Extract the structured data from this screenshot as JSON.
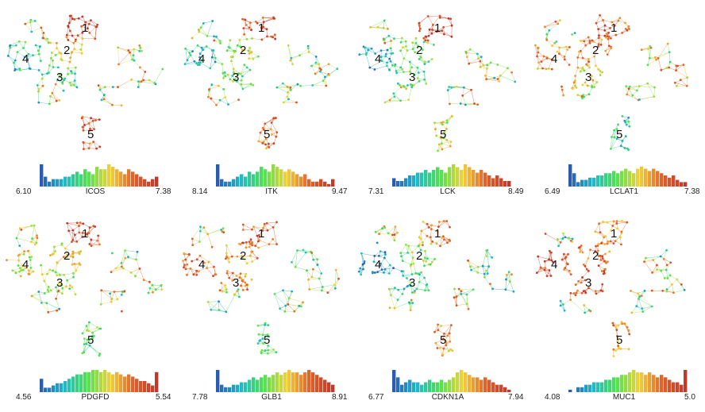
{
  "colors": {
    "low": "#2a5db0",
    "mid_low": "#1fb8c8",
    "mid": "#4fe24f",
    "mid_high": "#f2d13a",
    "high": "#e0602a",
    "max": "#c0392b"
  },
  "cluster_labels": [
    "1",
    "2",
    "3",
    "4",
    "5"
  ],
  "panels": [
    {
      "gene": "ICOS",
      "min": "6.10",
      "max": "7.38",
      "hist": [
        9,
        4,
        2,
        3,
        3,
        3,
        4,
        4,
        5,
        6,
        5,
        7,
        6,
        5,
        8,
        7,
        7,
        9,
        8,
        7,
        6,
        5,
        7,
        6,
        5,
        4,
        3,
        2,
        3,
        4
      ],
      "profile": [
        0.95,
        0.6,
        0.35,
        0.25,
        0.85
      ]
    },
    {
      "gene": "ITK",
      "min": "8.14",
      "max": "9.47",
      "hist": [
        9,
        3,
        2,
        2,
        3,
        4,
        5,
        4,
        6,
        5,
        6,
        8,
        7,
        6,
        9,
        8,
        7,
        6,
        7,
        6,
        5,
        4,
        5,
        3,
        2,
        2,
        3,
        2,
        1,
        3
      ],
      "profile": [
        0.9,
        0.5,
        0.4,
        0.2,
        0.8
      ]
    },
    {
      "gene": "LCK",
      "min": "7.31",
      "max": "8.49",
      "hist": [
        3,
        2,
        2,
        3,
        4,
        4,
        5,
        5,
        6,
        5,
        6,
        7,
        6,
        5,
        7,
        8,
        7,
        6,
        8,
        7,
        6,
        5,
        6,
        5,
        4,
        3,
        4,
        3,
        2,
        2
      ],
      "profile": [
        0.92,
        0.45,
        0.35,
        0.2,
        0.55
      ]
    },
    {
      "gene": "LCLAT1",
      "min": "6.49",
      "max": "7.38",
      "hist": [
        10,
        6,
        2,
        3,
        3,
        4,
        4,
        5,
        5,
        6,
        6,
        7,
        6,
        7,
        8,
        7,
        6,
        8,
        9,
        8,
        7,
        8,
        7,
        6,
        5,
        4,
        5,
        3,
        2,
        2
      ],
      "profile": [
        0.85,
        0.75,
        0.6,
        0.7,
        0.25
      ]
    },
    {
      "gene": "PDGFD",
      "min": "4.56",
      "max": "5.54",
      "hist": [
        6,
        2,
        2,
        3,
        4,
        4,
        5,
        6,
        7,
        8,
        8,
        9,
        9,
        10,
        10,
        9,
        10,
        9,
        8,
        9,
        8,
        7,
        8,
        7,
        6,
        5,
        5,
        4,
        3,
        9
      ],
      "profile": [
        0.9,
        0.6,
        0.5,
        0.55,
        0.4
      ]
    },
    {
      "gene": "GLB1",
      "min": "7.78",
      "max": "8.91",
      "hist": [
        9,
        3,
        2,
        2,
        3,
        3,
        4,
        4,
        5,
        6,
        5,
        6,
        7,
        6,
        7,
        8,
        7,
        8,
        9,
        8,
        8,
        7,
        8,
        9,
        8,
        7,
        6,
        5,
        4,
        3
      ],
      "profile": [
        0.85,
        0.7,
        0.75,
        0.8,
        0.35
      ]
    },
    {
      "gene": "CDKN1A",
      "min": "6.77",
      "max": "7.94",
      "hist": [
        9,
        6,
        3,
        4,
        5,
        4,
        4,
        3,
        4,
        5,
        4,
        4,
        5,
        4,
        5,
        6,
        8,
        9,
        8,
        7,
        6,
        6,
        5,
        6,
        5,
        4,
        3,
        3,
        2,
        1
      ],
      "profile": [
        0.75,
        0.45,
        0.3,
        0.1,
        0.7
      ]
    },
    {
      "gene": "MUC1",
      "min": "4.08",
      "max": "5.0",
      "hist": [
        1,
        0,
        2,
        2,
        3,
        3,
        4,
        4,
        4,
        5,
        5,
        6,
        6,
        7,
        7,
        8,
        9,
        8,
        8,
        7,
        8,
        7,
        6,
        7,
        6,
        5,
        4,
        4,
        3,
        9
      ],
      "profile": [
        0.7,
        0.8,
        0.85,
        0.9,
        0.75
      ]
    }
  ]
}
